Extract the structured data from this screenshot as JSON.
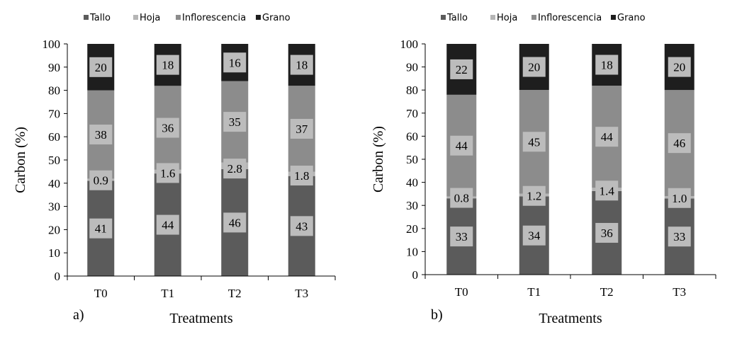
{
  "colors": {
    "tallo": "#5b5b5b",
    "hoja": "#b5b5b5",
    "inflorescencia": "#8c8c8c",
    "grano": "#1e1e1e",
    "label_box": "#bcbcbc"
  },
  "chart_data": [
    {
      "type": "bar",
      "stacked": true,
      "panel_label": "a)",
      "categories": [
        "T0",
        "T1",
        "T2",
        "T3"
      ],
      "xlabel": "Treatments",
      "ylabel": "Carbon (%)",
      "ylim": [
        0,
        100
      ],
      "yticks": [
        "0",
        "10",
        "20",
        "30",
        "40",
        "50",
        "60",
        "70",
        "80",
        "90",
        "100"
      ],
      "legend_position": "top",
      "series": [
        {
          "name": "Tallo",
          "values": [
            41,
            44,
            46,
            43
          ],
          "labels": [
            "41",
            "44",
            "46",
            "43"
          ]
        },
        {
          "name": "Hoja",
          "values": [
            0.9,
            1.6,
            2.8,
            1.8
          ],
          "labels": [
            "0.9",
            "1.6",
            "2.8",
            "1.8"
          ]
        },
        {
          "name": "Inflorescencia",
          "values": [
            38,
            36,
            35,
            37
          ],
          "labels": [
            "38",
            "36",
            "35",
            "37"
          ]
        },
        {
          "name": "Grano",
          "values": [
            20,
            18,
            16,
            18
          ],
          "labels": [
            "20",
            "18",
            "16",
            "18"
          ]
        }
      ]
    },
    {
      "type": "bar",
      "stacked": true,
      "panel_label": "b)",
      "categories": [
        "T0",
        "T1",
        "T2",
        "T3"
      ],
      "xlabel": "Treatments",
      "ylabel": "Carbon (%)",
      "ylim": [
        0,
        100
      ],
      "yticks": [
        "0",
        "10",
        "20",
        "30",
        "40",
        "50",
        "60",
        "70",
        "80",
        "90",
        "100"
      ],
      "legend_position": "top",
      "series": [
        {
          "name": "Tallo",
          "values": [
            33,
            34,
            36,
            33
          ],
          "labels": [
            "33",
            "34",
            "36",
            "33"
          ]
        },
        {
          "name": "Hoja",
          "values": [
            0.8,
            1.2,
            1.4,
            1.0
          ],
          "labels": [
            "0.8",
            "1.2",
            "1.4",
            "1.0"
          ]
        },
        {
          "name": "Inflorescencia",
          "values": [
            44,
            45,
            44,
            46
          ],
          "labels": [
            "44",
            "45",
            "44",
            "46"
          ]
        },
        {
          "name": "Grano",
          "values": [
            22,
            20,
            18,
            20
          ],
          "labels": [
            "22",
            "20",
            "18",
            "20"
          ]
        }
      ]
    }
  ]
}
